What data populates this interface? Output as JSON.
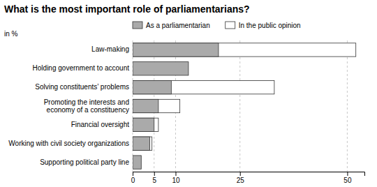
{
  "chart_data": {
    "type": "bar",
    "orientation": "horizontal",
    "title": "What is the most important role of parliamentarians?",
    "xlabel": "in %",
    "categories": [
      "Law-making",
      "Holding government to account",
      "Solving constituents’ problems",
      "Promoting the interests and\neconomy of a constituency",
      "Financial oversight",
      "Working with civil society organizations",
      "Supporting political party line"
    ],
    "series": [
      {
        "name": "As a parliamentarian",
        "color": "#aaaaaa",
        "values": [
          20,
          13,
          9,
          6,
          5,
          4,
          2
        ]
      },
      {
        "name": "In the public opinion",
        "color": "#ffffff",
        "values": [
          52,
          0,
          33,
          11,
          6,
          4.5,
          0
        ]
      }
    ],
    "xlim": [
      0,
      54
    ],
    "xticks": [
      0,
      5,
      10,
      25,
      50
    ],
    "grid": true,
    "legend": "top"
  }
}
